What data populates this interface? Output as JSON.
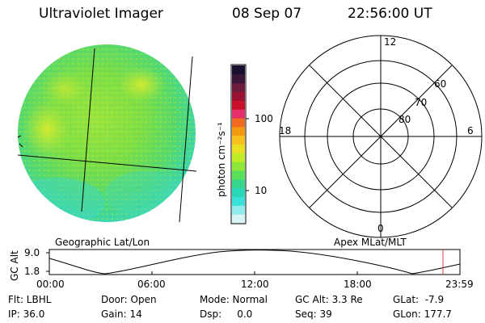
{
  "header": {
    "instrument": "Ultraviolet Imager",
    "date": "08 Sep 07",
    "time": "22:56:00 UT"
  },
  "colorbar": {
    "unit_label": "photon cm⁻²s⁻¹",
    "tick_labels": [
      "100",
      "10"
    ],
    "colors": [
      "#1a0f2e",
      "#3a1638",
      "#6e1a3d",
      "#9a1030",
      "#c8102a",
      "#e6306e",
      "#f06a20",
      "#f59a10",
      "#f5c020",
      "#e8e020",
      "#c0ec28",
      "#8ee838",
      "#58e05a",
      "#35d88a",
      "#28d8b8",
      "#38e0d8",
      "#90ecec",
      "#d8f4f4"
    ]
  },
  "polar": {
    "mlt_labels": {
      "top": "12",
      "left": "18",
      "right": "6",
      "bottom": "0"
    },
    "mlat_labels": [
      "60",
      "70",
      "80"
    ]
  },
  "left_caption": "Geographic Lat/Lon",
  "right_caption": "Apex MLat/MLT",
  "altitude_plot": {
    "ylabel": "GC Alt",
    "ytick_labels": [
      "9.0",
      "1.8"
    ],
    "xtick_labels": [
      "00:00",
      "06:00",
      "12:00",
      "18:00",
      "23:59"
    ],
    "marker_color": "#d04040"
  },
  "status": {
    "row1": {
      "flt": "Flt: LBHL",
      "door": "Door: Open",
      "mode": "Mode: Normal",
      "gc_alt": "GC Alt: 3.3 Re",
      "glat": "GLat:  -7.9"
    },
    "row2": {
      "ip": "IP: 36.0",
      "gain": "Gain: 14",
      "dsp": "Dsp:     0.0",
      "seq": "Seq: 39",
      "glon": "GLon: 177.7"
    }
  }
}
